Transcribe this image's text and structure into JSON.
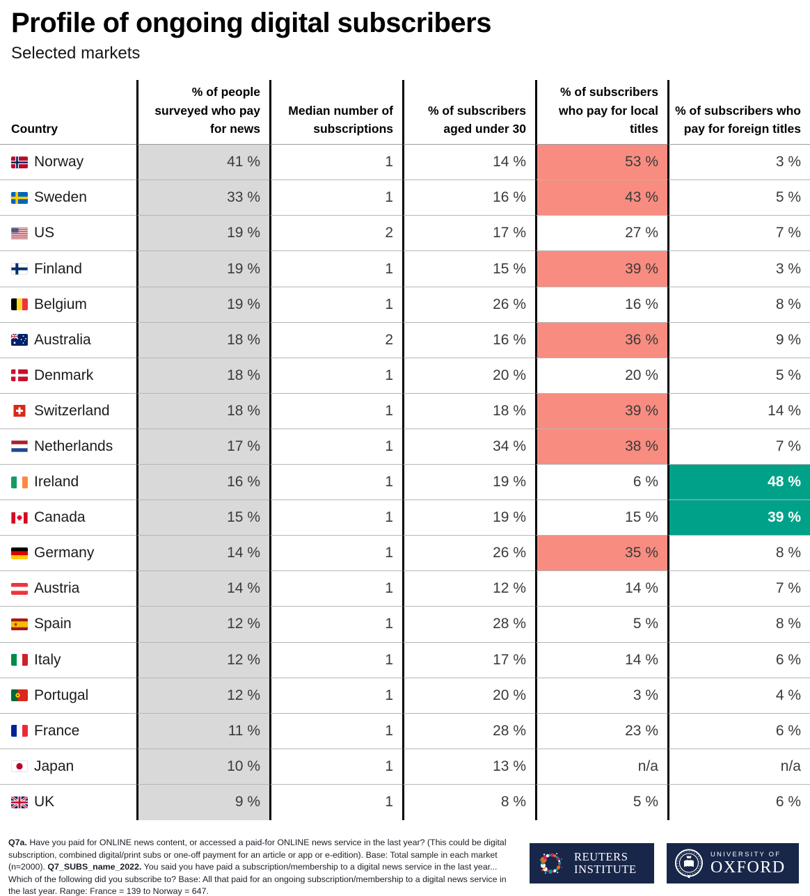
{
  "colors": {
    "local_highlight": "#f88c80",
    "foreign_highlight": "#00a189",
    "column_shade": "#d9d9d9",
    "divider": "#000000",
    "logo_navy": "#182649"
  },
  "chart_data": {
    "type": "table",
    "title": "Profile of ongoing digital subscribers",
    "subtitle": "Selected markets",
    "columns": [
      "Country",
      "% of people surveyed who pay for news",
      "Median number of subscriptions",
      "% of subscribers aged under 30",
      "% of subscribers who pay for local titles",
      "% of subscribers who pay for foreign titles"
    ],
    "rows": [
      {
        "country": "Norway",
        "flag_icon": "norway-flag-icon",
        "pay_for_news": "41 %",
        "median_subscriptions": "1",
        "aged_under_30": "14 %",
        "local_titles": "53 %",
        "foreign_titles": "3 %",
        "local_highlight": true,
        "foreign_highlight": false
      },
      {
        "country": "Sweden",
        "flag_icon": "sweden-flag-icon",
        "pay_for_news": "33 %",
        "median_subscriptions": "1",
        "aged_under_30": "16 %",
        "local_titles": "43 %",
        "foreign_titles": "5 %",
        "local_highlight": true,
        "foreign_highlight": false
      },
      {
        "country": "US",
        "flag_icon": "us-flag-icon",
        "pay_for_news": "19 %",
        "median_subscriptions": "2",
        "aged_under_30": "17 %",
        "local_titles": "27 %",
        "foreign_titles": "7 %",
        "local_highlight": false,
        "foreign_highlight": false
      },
      {
        "country": "Finland",
        "flag_icon": "finland-flag-icon",
        "pay_for_news": "19 %",
        "median_subscriptions": "1",
        "aged_under_30": "15 %",
        "local_titles": "39 %",
        "foreign_titles": "3 %",
        "local_highlight": true,
        "foreign_highlight": false
      },
      {
        "country": "Belgium",
        "flag_icon": "belgium-flag-icon",
        "pay_for_news": "19 %",
        "median_subscriptions": "1",
        "aged_under_30": "26 %",
        "local_titles": "16 %",
        "foreign_titles": "8 %",
        "local_highlight": false,
        "foreign_highlight": false
      },
      {
        "country": "Australia",
        "flag_icon": "australia-flag-icon",
        "pay_for_news": "18 %",
        "median_subscriptions": "2",
        "aged_under_30": "16 %",
        "local_titles": "36 %",
        "foreign_titles": "9 %",
        "local_highlight": true,
        "foreign_highlight": false
      },
      {
        "country": "Denmark",
        "flag_icon": "denmark-flag-icon",
        "pay_for_news": "18 %",
        "median_subscriptions": "1",
        "aged_under_30": "20 %",
        "local_titles": "20 %",
        "foreign_titles": "5 %",
        "local_highlight": false,
        "foreign_highlight": false
      },
      {
        "country": "Switzerland",
        "flag_icon": "switzerland-flag-icon",
        "pay_for_news": "18 %",
        "median_subscriptions": "1",
        "aged_under_30": "18 %",
        "local_titles": "39 %",
        "foreign_titles": "14 %",
        "local_highlight": true,
        "foreign_highlight": false
      },
      {
        "country": "Netherlands",
        "flag_icon": "netherlands-flag-icon",
        "pay_for_news": "17 %",
        "median_subscriptions": "1",
        "aged_under_30": "34 %",
        "local_titles": "38 %",
        "foreign_titles": "7 %",
        "local_highlight": true,
        "foreign_highlight": false
      },
      {
        "country": "Ireland",
        "flag_icon": "ireland-flag-icon",
        "pay_for_news": "16 %",
        "median_subscriptions": "1",
        "aged_under_30": "19 %",
        "local_titles": "6 %",
        "foreign_titles": "48 %",
        "local_highlight": false,
        "foreign_highlight": true
      },
      {
        "country": "Canada",
        "flag_icon": "canada-flag-icon",
        "pay_for_news": "15 %",
        "median_subscriptions": "1",
        "aged_under_30": "19 %",
        "local_titles": "15 %",
        "foreign_titles": "39 %",
        "local_highlight": false,
        "foreign_highlight": true
      },
      {
        "country": "Germany",
        "flag_icon": "germany-flag-icon",
        "pay_for_news": "14 %",
        "median_subscriptions": "1",
        "aged_under_30": "26 %",
        "local_titles": "35 %",
        "foreign_titles": "8 %",
        "local_highlight": true,
        "foreign_highlight": false
      },
      {
        "country": "Austria",
        "flag_icon": "austria-flag-icon",
        "pay_for_news": "14 %",
        "median_subscriptions": "1",
        "aged_under_30": "12 %",
        "local_titles": "14 %",
        "foreign_titles": "7 %",
        "local_highlight": false,
        "foreign_highlight": false
      },
      {
        "country": "Spain",
        "flag_icon": "spain-flag-icon",
        "pay_for_news": "12 %",
        "median_subscriptions": "1",
        "aged_under_30": "28 %",
        "local_titles": "5 %",
        "foreign_titles": "8 %",
        "local_highlight": false,
        "foreign_highlight": false
      },
      {
        "country": "Italy",
        "flag_icon": "italy-flag-icon",
        "pay_for_news": "12 %",
        "median_subscriptions": "1",
        "aged_under_30": "17 %",
        "local_titles": "14 %",
        "foreign_titles": "6 %",
        "local_highlight": false,
        "foreign_highlight": false
      },
      {
        "country": "Portugal",
        "flag_icon": "portugal-flag-icon",
        "pay_for_news": "12 %",
        "median_subscriptions": "1",
        "aged_under_30": "20 %",
        "local_titles": "3 %",
        "foreign_titles": "4 %",
        "local_highlight": false,
        "foreign_highlight": false
      },
      {
        "country": "France",
        "flag_icon": "france-flag-icon",
        "pay_for_news": "11 %",
        "median_subscriptions": "1",
        "aged_under_30": "28 %",
        "local_titles": "23 %",
        "foreign_titles": "6 %",
        "local_highlight": false,
        "foreign_highlight": false
      },
      {
        "country": "Japan",
        "flag_icon": "japan-flag-icon",
        "pay_for_news": "10 %",
        "median_subscriptions": "1",
        "aged_under_30": "13 %",
        "local_titles": "n/a",
        "foreign_titles": "n/a",
        "local_highlight": false,
        "foreign_highlight": false
      },
      {
        "country": "UK",
        "flag_icon": "uk-flag-icon",
        "pay_for_news": "9 %",
        "median_subscriptions": "1",
        "aged_under_30": "8 %",
        "local_titles": "5 %",
        "foreign_titles": "6 %",
        "local_highlight": false,
        "foreign_highlight": false
      }
    ]
  },
  "footnote": {
    "segments": [
      {
        "bold": true,
        "text": "Q7a."
      },
      {
        "bold": false,
        "text": " Have you paid for ONLINE news content, or accessed a paid-for ONLINE news service in the last year? (This could be digital subscription, combined digital/print subs or one-off payment for an article or app or e-edition). Base: Total sample in each market (n≈2000). "
      },
      {
        "bold": true,
        "text": "Q7_SUBS_name_2022."
      },
      {
        "bold": false,
        "text": " You said you have paid a subscription/membership to a digital news service in the last year... Which of the following did you subscribe to? Base: All that paid for an ongoing subscription/membership to a digital news service in the last year. Range: France = 139 to Norway = 647."
      }
    ]
  },
  "logos": {
    "reuters": {
      "line1": "REUTERS",
      "line2": "INSTITUTE"
    },
    "oxford": {
      "line1": "UNIVERSITY OF",
      "line2": "OXFORD"
    }
  }
}
